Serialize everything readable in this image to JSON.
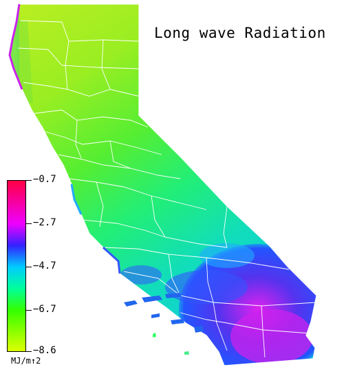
{
  "title": "Long wave Radiation",
  "legend": {
    "unit": "MJ/m↑2",
    "ticks": [
      "−0.7",
      "−2.7",
      "−4.7",
      "−6.7",
      "−8.6"
    ],
    "stops": [
      {
        "value": -0.7,
        "color": "#ff0044"
      },
      {
        "value": -2.7,
        "color": "#ee00ff"
      },
      {
        "value": -3.7,
        "color": "#3322ff"
      },
      {
        "value": -4.7,
        "color": "#00ccff"
      },
      {
        "value": -5.7,
        "color": "#00ff99"
      },
      {
        "value": -6.7,
        "color": "#33ff00"
      },
      {
        "value": -8.6,
        "color": "#ddff00"
      }
    ]
  },
  "colors": {
    "land_north": "#aaee22",
    "land_central": "#44ee44",
    "land_coast": "#11ddaa",
    "desert": "#3344ee",
    "desert_hot": "#dd22ee",
    "county_lines": "#ffffff"
  }
}
